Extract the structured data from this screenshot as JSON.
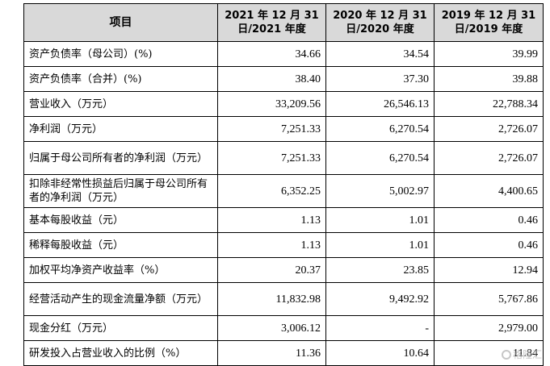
{
  "table": {
    "headers": [
      "项目",
      "2021 年 12 月 31 日/2021 年度",
      "2020 年 12 月 31 日/2020 年度",
      "2019 年 12 月 31 日/2019 年度"
    ],
    "rows": [
      {
        "label": "资产负债率（母公司）(%)",
        "v2021": "34.66",
        "v2020": "34.54",
        "v2019": "39.99"
      },
      {
        "label": "资产负债率（合并）(%)",
        "v2021": "38.40",
        "v2020": "37.30",
        "v2019": "39.88"
      },
      {
        "label": "营业收入（万元）",
        "v2021": "33,209.56",
        "v2020": "26,546.13",
        "v2019": "22,788.34"
      },
      {
        "label": "净利润（万元）",
        "v2021": "7,251.33",
        "v2020": "6,270.54",
        "v2019": "2,726.07"
      },
      {
        "label": "归属于母公司所有者的净利润（万元）",
        "v2021": "7,251.33",
        "v2020": "6,270.54",
        "v2019": "2,726.07"
      },
      {
        "label": "扣除非经常性损益后归属于母公司所有者的净利润（万元）",
        "v2021": "6,352.25",
        "v2020": "5,002.97",
        "v2019": "4,400.65"
      },
      {
        "label": "基本每股收益（元）",
        "v2021": "1.13",
        "v2020": "1.01",
        "v2019": "0.46"
      },
      {
        "label": "稀释每股收益（元）",
        "v2021": "1.13",
        "v2020": "1.01",
        "v2019": "0.46"
      },
      {
        "label": "加权平均净资产收益率（%）",
        "v2021": "20.37",
        "v2020": "23.85",
        "v2019": "12.94"
      },
      {
        "label": "经营活动产生的现金流量净额（万元）",
        "v2021": "11,832.98",
        "v2020": "9,492.92",
        "v2019": "5,767.86"
      },
      {
        "label": "现金分红（万元）",
        "v2021": "3,006.12",
        "v2020": "-",
        "v2019": "2,979.00"
      },
      {
        "label": "研发投入占营业收入的比例（%）",
        "v2021": "11.36",
        "v2020": "10.64",
        "v2019": "11.84"
      }
    ]
  },
  "watermark": {
    "text": "格隆汇",
    "icon": "gelonghui-logo-icon"
  }
}
